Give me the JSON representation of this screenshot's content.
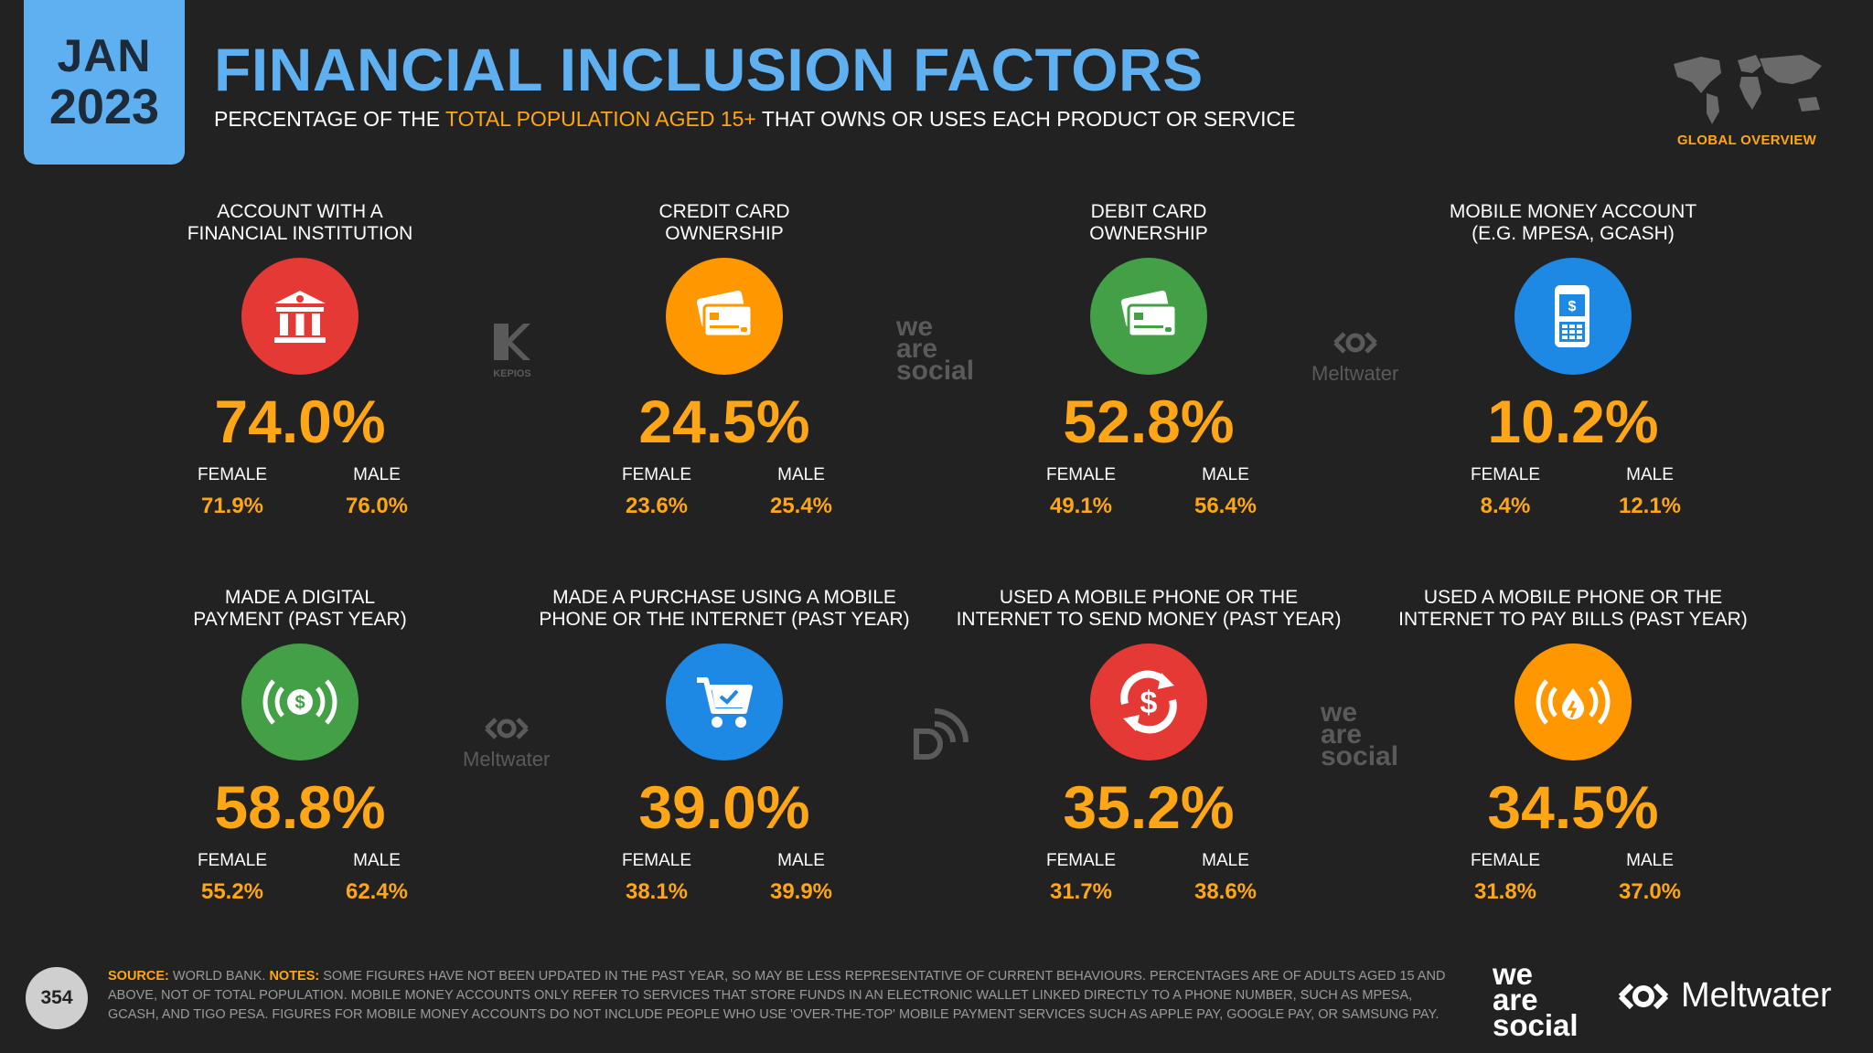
{
  "header": {
    "month": "JAN",
    "year": "2023",
    "title": "FINANCIAL INCLUSION FACTORS",
    "subtitle_pre": "PERCENTAGE OF THE ",
    "subtitle_highlight": "TOTAL POPULATION AGED 15+",
    "subtitle_post": " THAT OWNS OR USES EACH PRODUCT OR SERVICE",
    "global_overview": "GLOBAL OVERVIEW"
  },
  "colors": {
    "background": "#222222",
    "accent_blue": "#5fb0f0",
    "accent_orange": "#ffa617",
    "red": "#e53935",
    "orange": "#ff9800",
    "green": "#43a047",
    "blue": "#1e88e5"
  },
  "cards": [
    {
      "label1": "ACCOUNT WITH A",
      "label2": "FINANCIAL INSTITUTION",
      "value": "74.0%",
      "female_label": "FEMALE",
      "female": "71.9%",
      "male_label": "MALE",
      "male": "76.0%",
      "icon": "bank-icon",
      "color": "#e53935"
    },
    {
      "label1": "CREDIT CARD",
      "label2": "OWNERSHIP",
      "value": "24.5%",
      "female_label": "FEMALE",
      "female": "23.6%",
      "male_label": "MALE",
      "male": "25.4%",
      "icon": "credit-card-icon",
      "color": "#ff9800"
    },
    {
      "label1": "DEBIT CARD",
      "label2": "OWNERSHIP",
      "value": "52.8%",
      "female_label": "FEMALE",
      "female": "49.1%",
      "male_label": "MALE",
      "male": "56.4%",
      "icon": "debit-card-icon",
      "color": "#43a047"
    },
    {
      "label1": "MOBILE MONEY ACCOUNT",
      "label2": "(E.G. MPESA, GCASH)",
      "value": "10.2%",
      "female_label": "FEMALE",
      "female": "8.4%",
      "male_label": "MALE",
      "male": "12.1%",
      "icon": "mobile-money-icon",
      "color": "#1e88e5"
    },
    {
      "label1": "MADE A DIGITAL",
      "label2": "PAYMENT (PAST YEAR)",
      "value": "58.8%",
      "female_label": "FEMALE",
      "female": "55.2%",
      "male_label": "MALE",
      "male": "62.4%",
      "icon": "digital-payment-icon",
      "color": "#43a047"
    },
    {
      "label1": "MADE A PURCHASE USING A MOBILE",
      "label2": "PHONE OR THE INTERNET (PAST YEAR)",
      "value": "39.0%",
      "female_label": "FEMALE",
      "female": "38.1%",
      "male_label": "MALE",
      "male": "39.9%",
      "icon": "shopping-cart-icon",
      "color": "#1e88e5"
    },
    {
      "label1": "USED A MOBILE PHONE OR THE",
      "label2": "INTERNET TO SEND MONEY (PAST YEAR)",
      "value": "35.2%",
      "female_label": "FEMALE",
      "female": "31.7%",
      "male_label": "MALE",
      "male": "38.6%",
      "icon": "send-money-icon",
      "color": "#e53935"
    },
    {
      "label1": "USED A MOBILE PHONE OR THE",
      "label2": "INTERNET TO PAY BILLS (PAST YEAR)",
      "value": "34.5%",
      "female_label": "FEMALE",
      "female": "31.8%",
      "male_label": "MALE",
      "male": "37.0%",
      "icon": "pay-bills-icon",
      "color": "#ff9800"
    }
  ],
  "watermarks": {
    "kepios": "KEPIOS",
    "meltwater": "Meltwater",
    "we": "we",
    "are": "are",
    "social": "social"
  },
  "footer": {
    "page": "354",
    "source_label": "SOURCE:",
    "source_text": " WORLD BANK. ",
    "notes_label": "NOTES:",
    "notes_text": " SOME FIGURES HAVE NOT BEEN UPDATED IN THE PAST YEAR, SO MAY BE LESS REPRESENTATIVE OF CURRENT BEHAVIOURS. PERCENTAGES ARE OF ADULTS AGED 15 AND ABOVE, NOT OF TOTAL POPULATION. MOBILE MONEY ACCOUNTS ONLY REFER TO SERVICES THAT STORE FUNDS IN AN ELECTRONIC WALLET LINKED DIRECTLY TO A PHONE NUMBER, SUCH AS MPESA, GCASH, AND TIGO PESA. FIGURES FOR MOBILE MONEY ACCOUNTS DO NOT INCLUDE PEOPLE WHO USE 'OVER-THE-TOP' MOBILE PAYMENT SERVICES SUCH AS APPLE PAY, GOOGLE PAY, OR SAMSUNG PAY.",
    "brand_we": "we",
    "brand_are": "are",
    "brand_social": "social",
    "brand_meltwater": "Meltwater"
  }
}
